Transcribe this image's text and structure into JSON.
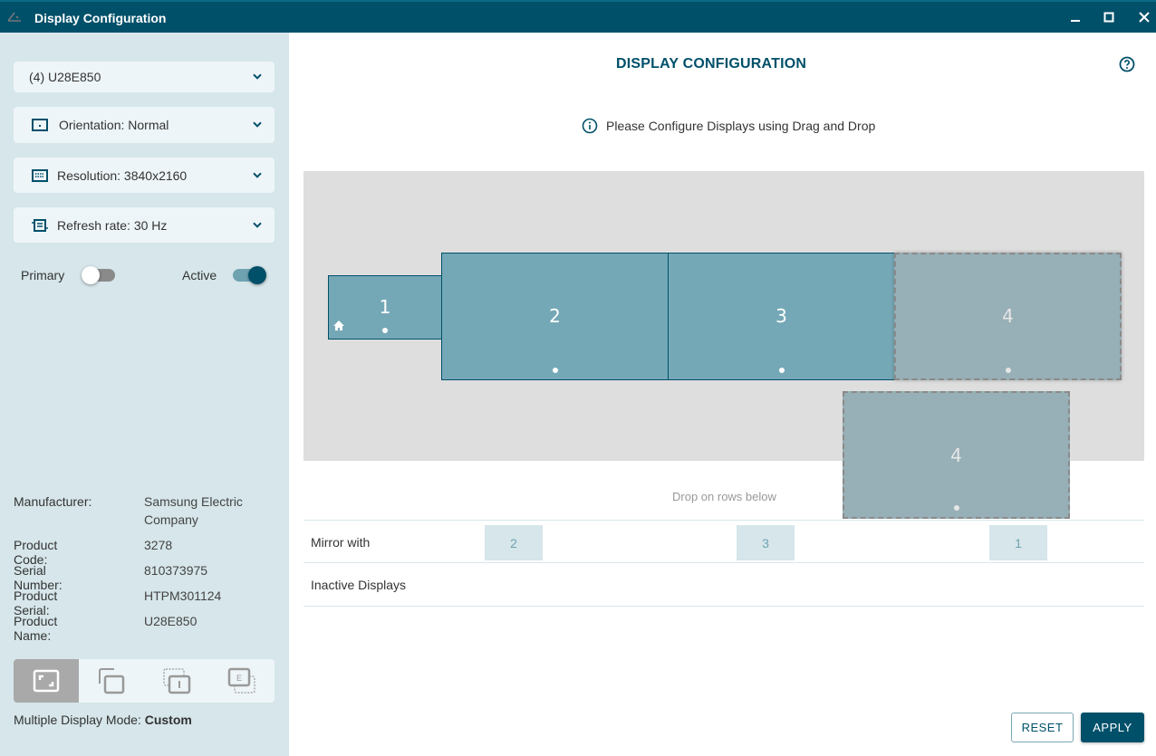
{
  "window": {
    "title": "Display Configuration",
    "minimize": "–",
    "maximize": "□",
    "close": "✕"
  },
  "sidebar": {
    "display_select": "(4) U28E850",
    "orientation": "Orientation: Normal",
    "resolution": "Resolution: 3840x2160",
    "refresh_rate": "Refresh rate: 30 Hz",
    "primary_label": "Primary",
    "primary_on": false,
    "active_label": "Active",
    "active_on": true,
    "info": [
      {
        "key": "Manufacturer:",
        "value": "Samsung Electric Company"
      },
      {
        "key": "Product Code:",
        "value": "3278"
      },
      {
        "key": "Serial Number:",
        "value": "810373975"
      },
      {
        "key": "Product Serial:",
        "value": "HTPM301124"
      },
      {
        "key": "Product Name:",
        "value": "U28E850"
      }
    ],
    "modes": [
      "custom",
      "mirror",
      "internal-only",
      "external-only"
    ],
    "selected_mode": "custom",
    "mode_label": "Multiple Display Mode: ",
    "mode_value": "Custom"
  },
  "main": {
    "title": "DISPLAY CONFIGURATION",
    "hint": "Please Configure Displays using Drag and Drop",
    "monitors": [
      {
        "label": "1",
        "primary": true
      },
      {
        "label": "2"
      },
      {
        "label": "3"
      },
      {
        "label": "4",
        "state": "dragging-source"
      },
      {
        "label": "4",
        "state": "drag-ghost"
      }
    ],
    "drop_hint": "Drop on rows below",
    "mirror_label": "Mirror with",
    "mirror_chips": [
      "2",
      "3",
      "1"
    ],
    "inactive_label": "Inactive Displays",
    "reset": "RESET",
    "apply": "APPLY"
  },
  "colors": {
    "accent": "#00506a",
    "monitor": "#75a8b6",
    "sidebar": "#d6e6ea"
  }
}
